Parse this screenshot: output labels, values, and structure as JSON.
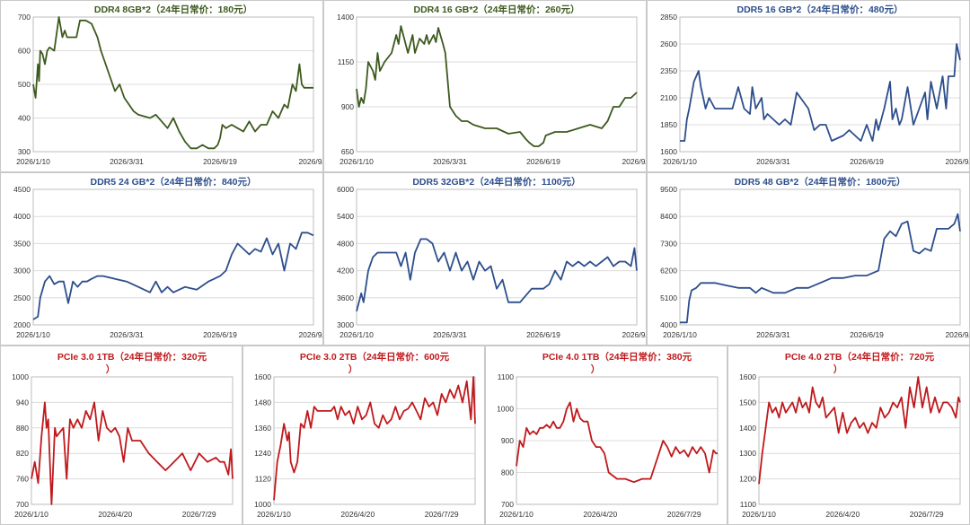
{
  "colors": {
    "ddr4": "#3d5a1e",
    "ddr5": "#2d4e8c",
    "pcie": "#c0191c",
    "grid": "#dcdcdc"
  },
  "chart_data": [
    {
      "type": "line",
      "title": "DDR4 8GB*2（24年日常价：180元）",
      "color_key": "ddr4",
      "xlim": [
        0,
        240
      ],
      "ylim": [
        300,
        700
      ],
      "yticks": [
        300,
        400,
        500,
        600,
        700
      ],
      "xticks": [
        {
          "x": 0,
          "label": "2026/1/10"
        },
        {
          "x": 80,
          "label": "2026/3/31"
        },
        {
          "x": 160,
          "label": "2026/6/19"
        },
        {
          "x": 240,
          "label": "2026/9/7"
        }
      ],
      "x": [
        0,
        2,
        4,
        5,
        6,
        8,
        10,
        12,
        14,
        18,
        22,
        25,
        27,
        29,
        33,
        37,
        40,
        45,
        50,
        55,
        58,
        62,
        66,
        70,
        74,
        78,
        82,
        86,
        90,
        95,
        100,
        105,
        110,
        115,
        120,
        125,
        130,
        135,
        140,
        145,
        150,
        155,
        158,
        160,
        162,
        165,
        170,
        175,
        180,
        185,
        190,
        195,
        200,
        205,
        210,
        215,
        218,
        222,
        225,
        228,
        230,
        232,
        240
      ],
      "y": [
        500,
        460,
        560,
        510,
        600,
        590,
        560,
        600,
        610,
        600,
        700,
        640,
        660,
        640,
        640,
        640,
        690,
        690,
        680,
        640,
        600,
        560,
        520,
        480,
        500,
        460,
        440,
        420,
        410,
        405,
        400,
        410,
        390,
        370,
        400,
        360,
        330,
        310,
        310,
        320,
        310,
        310,
        320,
        340,
        380,
        370,
        380,
        370,
        360,
        390,
        360,
        380,
        380,
        420,
        400,
        440,
        430,
        500,
        480,
        560,
        500,
        490,
        490
      ]
    },
    {
      "type": "line",
      "title": "DDR4 16 GB*2（24年日常价：260元）",
      "color_key": "ddr4",
      "xlim": [
        0,
        240
      ],
      "ylim": [
        650,
        1400
      ],
      "yticks": [
        650,
        900,
        1150,
        1400
      ],
      "xticks": [
        {
          "x": 0,
          "label": "2026/1/10"
        },
        {
          "x": 80,
          "label": "2026/3/31"
        },
        {
          "x": 160,
          "label": "2026/6/19"
        },
        {
          "x": 240,
          "label": "2026/9/7"
        }
      ],
      "x": [
        0,
        2,
        4,
        6,
        8,
        10,
        14,
        16,
        18,
        20,
        24,
        30,
        34,
        36,
        38,
        44,
        48,
        50,
        54,
        58,
        60,
        62,
        66,
        68,
        70,
        74,
        76,
        80,
        85,
        90,
        95,
        100,
        110,
        120,
        130,
        140,
        145,
        148,
        152,
        156,
        160,
        162,
        170,
        180,
        190,
        200,
        210,
        215,
        220,
        225,
        230,
        235,
        240
      ],
      "y": [
        1000,
        900,
        950,
        920,
        1000,
        1150,
        1100,
        1050,
        1200,
        1100,
        1150,
        1200,
        1300,
        1250,
        1350,
        1200,
        1300,
        1200,
        1280,
        1250,
        1300,
        1250,
        1300,
        1260,
        1340,
        1250,
        1200,
        900,
        850,
        820,
        820,
        800,
        780,
        780,
        750,
        760,
        720,
        700,
        680,
        680,
        700,
        740,
        760,
        760,
        780,
        800,
        780,
        820,
        900,
        900,
        950,
        950,
        980
      ]
    },
    {
      "type": "line",
      "title": "DDR5 16 GB*2（24年日常价：480元）",
      "color_key": "ddr5",
      "xlim": [
        0,
        240
      ],
      "ylim": [
        1600,
        2850
      ],
      "yticks": [
        1600,
        1850,
        2100,
        2350,
        2600,
        2850
      ],
      "xticks": [
        {
          "x": 0,
          "label": "2026/1/10"
        },
        {
          "x": 80,
          "label": "2026/3/31"
        },
        {
          "x": 160,
          "label": "2026/6/19"
        },
        {
          "x": 240,
          "label": "2026/9/7"
        }
      ],
      "x": [
        0,
        4,
        6,
        8,
        12,
        16,
        18,
        22,
        25,
        30,
        35,
        40,
        45,
        50,
        55,
        60,
        62,
        65,
        70,
        72,
        75,
        80,
        85,
        90,
        95,
        100,
        110,
        115,
        120,
        125,
        130,
        140,
        145,
        150,
        155,
        160,
        165,
        168,
        170,
        175,
        180,
        182,
        185,
        188,
        190,
        195,
        200,
        205,
        210,
        212,
        215,
        220,
        225,
        228,
        230,
        235,
        237,
        240
      ],
      "y": [
        1700,
        1700,
        1900,
        2000,
        2250,
        2350,
        2200,
        2000,
        2100,
        2000,
        2000,
        2000,
        2000,
        2200,
        2000,
        1950,
        2200,
        2000,
        2100,
        1900,
        1950,
        1900,
        1850,
        1900,
        1850,
        2150,
        2000,
        1800,
        1850,
        1850,
        1700,
        1750,
        1800,
        1750,
        1700,
        1850,
        1700,
        1900,
        1800,
        2000,
        2250,
        1900,
        2000,
        1850,
        1900,
        2200,
        1850,
        2000,
        2150,
        1900,
        2250,
        2000,
        2300,
        2000,
        2300,
        2300,
        2600,
        2450
      ]
    },
    {
      "type": "line",
      "title": "DDR5 24 GB*2（24年日常价：840元）",
      "color_key": "ddr5",
      "xlim": [
        0,
        240
      ],
      "ylim": [
        2000,
        4500
      ],
      "yticks": [
        2000,
        2500,
        3000,
        3500,
        4000,
        4500
      ],
      "xticks": [
        {
          "x": 0,
          "label": "2026/1/10"
        },
        {
          "x": 80,
          "label": "2026/3/31"
        },
        {
          "x": 160,
          "label": "2026/6/19"
        },
        {
          "x": 240,
          "label": "2026/9/7"
        }
      ],
      "x": [
        0,
        4,
        6,
        10,
        14,
        18,
        22,
        26,
        30,
        34,
        38,
        42,
        46,
        50,
        55,
        60,
        70,
        80,
        90,
        100,
        105,
        110,
        115,
        120,
        130,
        140,
        150,
        155,
        160,
        165,
        170,
        175,
        180,
        185,
        190,
        195,
        200,
        205,
        210,
        215,
        220,
        225,
        230,
        235,
        240
      ],
      "y": [
        2100,
        2150,
        2500,
        2800,
        2900,
        2750,
        2800,
        2800,
        2400,
        2800,
        2700,
        2800,
        2800,
        2850,
        2900,
        2900,
        2850,
        2800,
        2700,
        2600,
        2800,
        2600,
        2700,
        2600,
        2700,
        2650,
        2800,
        2850,
        2900,
        3000,
        3300,
        3500,
        3400,
        3300,
        3400,
        3350,
        3600,
        3300,
        3500,
        3000,
        3500,
        3400,
        3700,
        3700,
        3650
      ]
    },
    {
      "type": "line",
      "title": "DDR5 32GB*2（24年日常价：1100元）",
      "color_key": "ddr5",
      "xlim": [
        0,
        240
      ],
      "ylim": [
        3000,
        6000
      ],
      "yticks": [
        3000,
        3600,
        4200,
        4800,
        5400,
        6000
      ],
      "xticks": [
        {
          "x": 0,
          "label": "2026/1/10"
        },
        {
          "x": 80,
          "label": "2026/3/31"
        },
        {
          "x": 160,
          "label": "2026/6/19"
        },
        {
          "x": 240,
          "label": "2026/9/7"
        }
      ],
      "x": [
        0,
        4,
        6,
        10,
        14,
        18,
        22,
        26,
        30,
        34,
        38,
        42,
        46,
        50,
        55,
        60,
        65,
        70,
        75,
        80,
        85,
        90,
        95,
        100,
        105,
        110,
        115,
        120,
        125,
        130,
        140,
        150,
        160,
        165,
        170,
        175,
        180,
        185,
        190,
        195,
        200,
        205,
        210,
        215,
        220,
        225,
        230,
        235,
        238,
        240
      ],
      "y": [
        3300,
        3700,
        3500,
        4200,
        4500,
        4600,
        4600,
        4600,
        4600,
        4600,
        4300,
        4600,
        4000,
        4600,
        4900,
        4900,
        4800,
        4400,
        4600,
        4200,
        4600,
        4200,
        4400,
        4000,
        4400,
        4200,
        4300,
        3800,
        4000,
        3500,
        3500,
        3800,
        3800,
        3900,
        4200,
        4000,
        4400,
        4300,
        4400,
        4300,
        4400,
        4300,
        4400,
        4500,
        4300,
        4400,
        4400,
        4300,
        4700,
        4200
      ]
    },
    {
      "type": "line",
      "title": "DDR5 48 GB*2（24年日常价：1800元）",
      "color_key": "ddr5",
      "xlim": [
        0,
        240
      ],
      "ylim": [
        4000,
        9500
      ],
      "yticks": [
        4000,
        5100,
        6200,
        7300,
        8400,
        9500
      ],
      "xticks": [
        {
          "x": 0,
          "label": "2026/1/10"
        },
        {
          "x": 80,
          "label": "2026/3/31"
        },
        {
          "x": 160,
          "label": "2026/6/19"
        },
        {
          "x": 240,
          "label": "2026/9/7"
        }
      ],
      "x": [
        0,
        6,
        8,
        10,
        14,
        18,
        22,
        26,
        30,
        40,
        50,
        60,
        65,
        70,
        80,
        90,
        100,
        110,
        120,
        130,
        140,
        150,
        160,
        170,
        175,
        180,
        185,
        190,
        195,
        200,
        205,
        210,
        215,
        220,
        225,
        230,
        235,
        238,
        240
      ],
      "y": [
        4100,
        4100,
        5000,
        5400,
        5500,
        5700,
        5700,
        5700,
        5700,
        5600,
        5500,
        5500,
        5300,
        5500,
        5300,
        5300,
        5500,
        5500,
        5700,
        5900,
        5900,
        6000,
        6000,
        6200,
        7500,
        7800,
        7600,
        8100,
        8200,
        7000,
        6900,
        7100,
        7000,
        7900,
        7900,
        7900,
        8100,
        8500,
        7800
      ]
    },
    {
      "type": "line",
      "title": "PCIe 3.0 1TB（24年日常价：320元）",
      "color_key": "pcie",
      "xlim": [
        0,
        240
      ],
      "ylim": [
        700,
        1000
      ],
      "yticks": [
        700,
        760,
        820,
        880,
        940,
        1000
      ],
      "xticks": [
        {
          "x": 0,
          "label": "2026/1/10"
        },
        {
          "x": 100,
          "label": "2026/4/20"
        },
        {
          "x": 200,
          "label": "2026/7/29"
        }
      ],
      "x": [
        0,
        4,
        8,
        12,
        16,
        18,
        20,
        24,
        28,
        30,
        34,
        38,
        42,
        46,
        50,
        55,
        60,
        65,
        70,
        75,
        80,
        85,
        90,
        95,
        100,
        105,
        110,
        115,
        120,
        130,
        140,
        150,
        160,
        170,
        180,
        190,
        200,
        210,
        220,
        225,
        230,
        235,
        238,
        240
      ],
      "y": [
        760,
        800,
        750,
        860,
        940,
        880,
        900,
        700,
        880,
        860,
        870,
        880,
        760,
        900,
        880,
        900,
        880,
        920,
        900,
        940,
        850,
        920,
        880,
        870,
        880,
        860,
        800,
        880,
        850,
        850,
        820,
        800,
        780,
        800,
        820,
        780,
        820,
        800,
        810,
        800,
        800,
        770,
        830,
        760
      ]
    },
    {
      "type": "line",
      "title": "PCIe 3.0 2TB（24年日常价：600元）",
      "color_key": "pcie",
      "xlim": [
        0,
        240
      ],
      "ylim": [
        1000,
        1600
      ],
      "yticks": [
        1000,
        1120,
        1240,
        1360,
        1480,
        1600
      ],
      "xticks": [
        {
          "x": 0,
          "label": "2026/1/10"
        },
        {
          "x": 100,
          "label": "2026/4/20"
        },
        {
          "x": 200,
          "label": "2026/7/29"
        }
      ],
      "x": [
        0,
        4,
        8,
        12,
        16,
        18,
        20,
        24,
        28,
        32,
        36,
        40,
        44,
        48,
        52,
        56,
        60,
        64,
        68,
        72,
        76,
        80,
        85,
        90,
        95,
        100,
        105,
        110,
        115,
        120,
        125,
        130,
        135,
        140,
        145,
        150,
        155,
        160,
        165,
        170,
        175,
        180,
        185,
        190,
        195,
        200,
        205,
        210,
        215,
        220,
        225,
        230,
        235,
        238,
        240
      ],
      "y": [
        1020,
        1200,
        1280,
        1380,
        1300,
        1340,
        1200,
        1150,
        1200,
        1380,
        1360,
        1440,
        1360,
        1460,
        1440,
        1440,
        1440,
        1440,
        1440,
        1460,
        1400,
        1460,
        1420,
        1440,
        1380,
        1460,
        1400,
        1420,
        1480,
        1380,
        1360,
        1420,
        1380,
        1400,
        1460,
        1400,
        1440,
        1450,
        1480,
        1440,
        1400,
        1500,
        1460,
        1480,
        1420,
        1520,
        1480,
        1540,
        1500,
        1560,
        1480,
        1580,
        1400,
        1600,
        1380
      ]
    },
    {
      "type": "line",
      "title": "PCIe 4.0 1TB（24年日常价：380元）",
      "color_key": "pcie",
      "xlim": [
        0,
        240
      ],
      "ylim": [
        700,
        1100
      ],
      "yticks": [
        700,
        800,
        900,
        1000,
        1100
      ],
      "xticks": [
        {
          "x": 0,
          "label": "2026/1/10"
        },
        {
          "x": 100,
          "label": "2026/4/20"
        },
        {
          "x": 200,
          "label": "2026/7/29"
        }
      ],
      "x": [
        0,
        4,
        8,
        12,
        16,
        20,
        24,
        28,
        32,
        36,
        40,
        44,
        48,
        52,
        56,
        60,
        64,
        68,
        72,
        76,
        80,
        85,
        90,
        95,
        100,
        105,
        110,
        120,
        130,
        140,
        150,
        160,
        170,
        175,
        180,
        185,
        190,
        195,
        200,
        205,
        210,
        215,
        220,
        225,
        230,
        235,
        238,
        240
      ],
      "y": [
        820,
        900,
        880,
        940,
        920,
        930,
        920,
        940,
        940,
        950,
        940,
        960,
        940,
        940,
        960,
        1000,
        1020,
        960,
        1000,
        970,
        960,
        960,
        900,
        880,
        880,
        860,
        800,
        780,
        780,
        770,
        780,
        780,
        860,
        900,
        880,
        850,
        880,
        860,
        870,
        850,
        880,
        860,
        880,
        860,
        800,
        870,
        860,
        860
      ]
    },
    {
      "type": "line",
      "title": "PCIe 4.0 2TB（24年日常价：720元）",
      "color_key": "pcie",
      "xlim": [
        0,
        240
      ],
      "ylim": [
        1100,
        1600
      ],
      "yticks": [
        1100,
        1200,
        1300,
        1400,
        1500,
        1600
      ],
      "xticks": [
        {
          "x": 0,
          "label": "2026/1/10"
        },
        {
          "x": 100,
          "label": "2026/4/20"
        },
        {
          "x": 200,
          "label": "2026/7/29"
        }
      ],
      "x": [
        0,
        4,
        8,
        12,
        16,
        20,
        24,
        28,
        32,
        36,
        40,
        44,
        48,
        52,
        56,
        60,
        64,
        68,
        72,
        76,
        80,
        85,
        90,
        95,
        100,
        105,
        110,
        115,
        120,
        125,
        130,
        135,
        140,
        145,
        150,
        155,
        160,
        165,
        170,
        175,
        180,
        185,
        190,
        195,
        200,
        205,
        210,
        215,
        220,
        225,
        230,
        235,
        238,
        240
      ],
      "y": [
        1180,
        1300,
        1400,
        1500,
        1460,
        1480,
        1440,
        1500,
        1460,
        1480,
        1500,
        1460,
        1520,
        1480,
        1500,
        1460,
        1560,
        1500,
        1480,
        1520,
        1440,
        1460,
        1480,
        1380,
        1460,
        1380,
        1420,
        1440,
        1400,
        1420,
        1380,
        1420,
        1400,
        1480,
        1440,
        1460,
        1500,
        1480,
        1520,
        1400,
        1560,
        1480,
        1600,
        1480,
        1560,
        1460,
        1520,
        1460,
        1500,
        1500,
        1480,
        1440,
        1520,
        1500
      ]
    }
  ]
}
